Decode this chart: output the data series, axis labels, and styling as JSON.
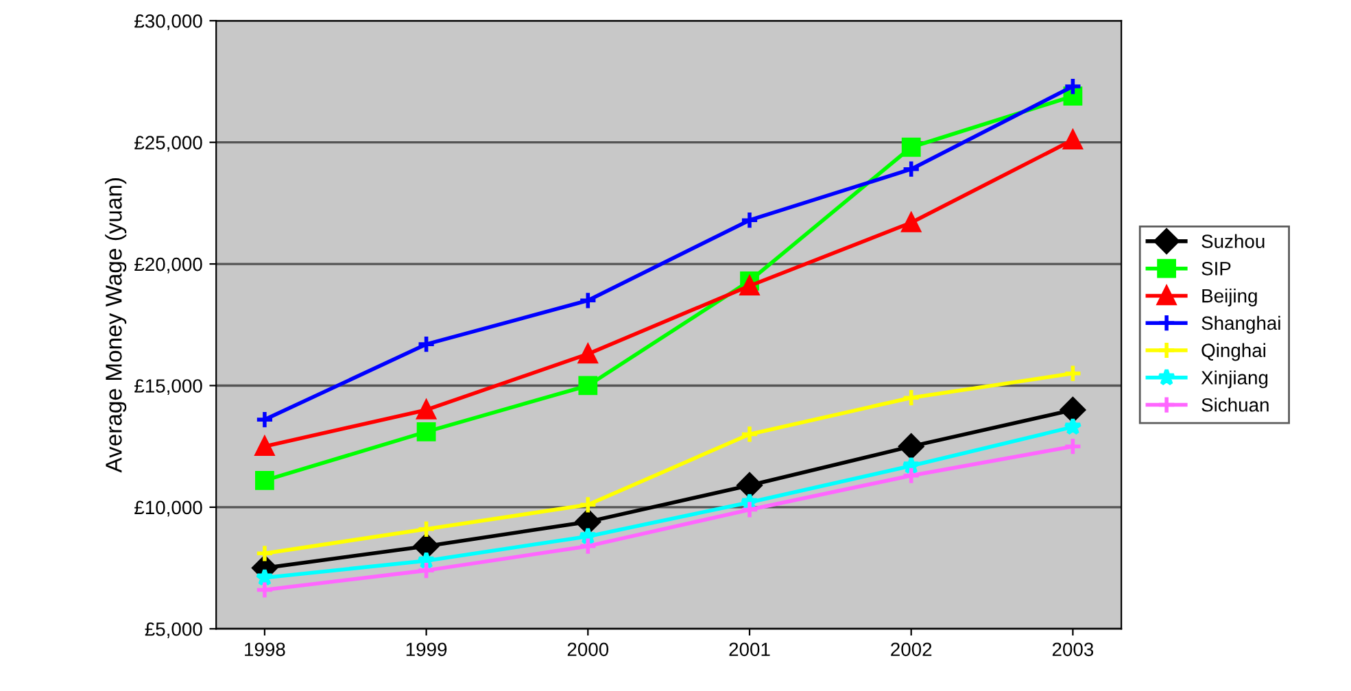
{
  "chart_data": {
    "type": "line",
    "ylabel": "Average Money Wage (yuan)",
    "categories": [
      "1998",
      "1999",
      "2000",
      "2001",
      "2002",
      "2003"
    ],
    "ylim": [
      5000,
      30000
    ],
    "yticks": [
      {
        "value": 5000,
        "label": "£5,000"
      },
      {
        "value": 10000,
        "label": "£10,000"
      },
      {
        "value": 15000,
        "label": "£15,000"
      },
      {
        "value": 20000,
        "label": "£20,000"
      },
      {
        "value": 25000,
        "label": "£25,000"
      },
      {
        "value": 30000,
        "label": "£30,000"
      }
    ],
    "grid": "y",
    "legend": "right",
    "line_style": "solid",
    "series": [
      {
        "name": "Suzhou",
        "color": "#000000",
        "marker": "diamond",
        "values": [
          7500,
          8400,
          9400,
          10900,
          12500,
          14000
        ]
      },
      {
        "name": "SIP",
        "color": "#00ff00",
        "marker": "square",
        "values": [
          11100,
          13100,
          15000,
          19300,
          24800,
          26900
        ]
      },
      {
        "name": "Beijing",
        "color": "#ff0000",
        "marker": "triangle",
        "values": [
          12500,
          14000,
          16300,
          19100,
          21700,
          25100
        ]
      },
      {
        "name": "Shanghai",
        "color": "#0000ff",
        "marker": "cross",
        "values": [
          13600,
          16700,
          18500,
          21800,
          23900,
          27300
        ]
      },
      {
        "name": "Qinghai",
        "color": "#ffff00",
        "marker": "cross",
        "values": [
          8100,
          9100,
          10100,
          13000,
          14500,
          15500
        ]
      },
      {
        "name": "Xinjiang",
        "color": "#00ffff",
        "marker": "star",
        "values": [
          7100,
          7800,
          8800,
          10200,
          11700,
          13300
        ]
      },
      {
        "name": "Sichuan",
        "color": "#ff66ff",
        "marker": "cross",
        "values": [
          6600,
          7400,
          8400,
          9900,
          11300,
          12500
        ]
      }
    ]
  }
}
